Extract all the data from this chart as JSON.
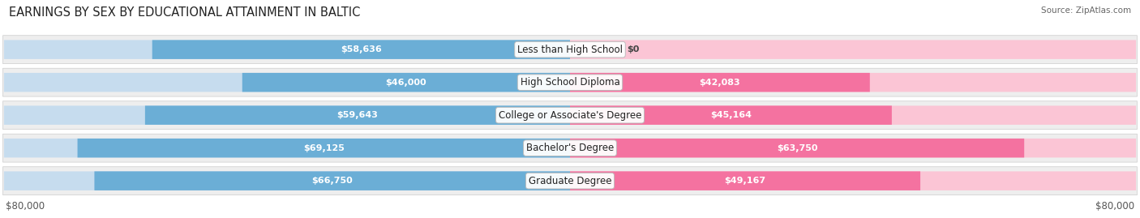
{
  "title": "EARNINGS BY SEX BY EDUCATIONAL ATTAINMENT IN BALTIC",
  "source": "Source: ZipAtlas.com",
  "categories": [
    "Less than High School",
    "High School Diploma",
    "College or Associate's Degree",
    "Bachelor's Degree",
    "Graduate Degree"
  ],
  "male_values": [
    58636,
    46000,
    59643,
    69125,
    66750
  ],
  "female_values": [
    0,
    42083,
    45164,
    63750,
    49167
  ],
  "male_color": "#6baed6",
  "female_color": "#f472a0",
  "male_color_light": "#c6dcee",
  "female_color_light": "#fbc5d5",
  "max_value": 80000,
  "xlabel_left": "$80,000",
  "xlabel_right": "$80,000",
  "background_color": "#ffffff",
  "row_bg_color": "#eeeeee",
  "title_fontsize": 10.5,
  "label_fontsize": 8.5,
  "tick_fontsize": 8.5,
  "value_label_fontsize": 8.0
}
